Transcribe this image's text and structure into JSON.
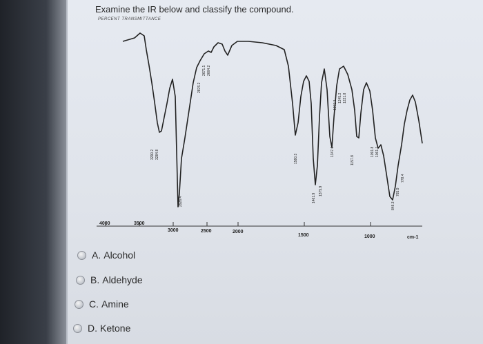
{
  "question": {
    "title": "Examine the IR below and classify the compound.",
    "subtitle": "PERCENT TRANSMITTANCE"
  },
  "spectrum": {
    "x_ticks": [
      "4000",
      "3500",
      "3000",
      "2500",
      "2000",
      "1500",
      "1000",
      "cm-1"
    ],
    "peak_labels": [
      "3290.2",
      "3284.8",
      "2926.4",
      "2876.2",
      "2671.1",
      "2664.2",
      "1580.3",
      "1461.9",
      "1375.9",
      "1347.6",
      "1302.3",
      "1245.2",
      "1221.8",
      "1157.8",
      "1091.8",
      "1061.1",
      "848.3",
      "765.9",
      "778.4"
    ]
  },
  "options": [
    {
      "letter": "A.",
      "label": "Alcohol"
    },
    {
      "letter": "B.",
      "label": "Aldehyde"
    },
    {
      "letter": "C.",
      "label": "Amine"
    },
    {
      "letter": "D.",
      "label": "Ketone"
    }
  ]
}
